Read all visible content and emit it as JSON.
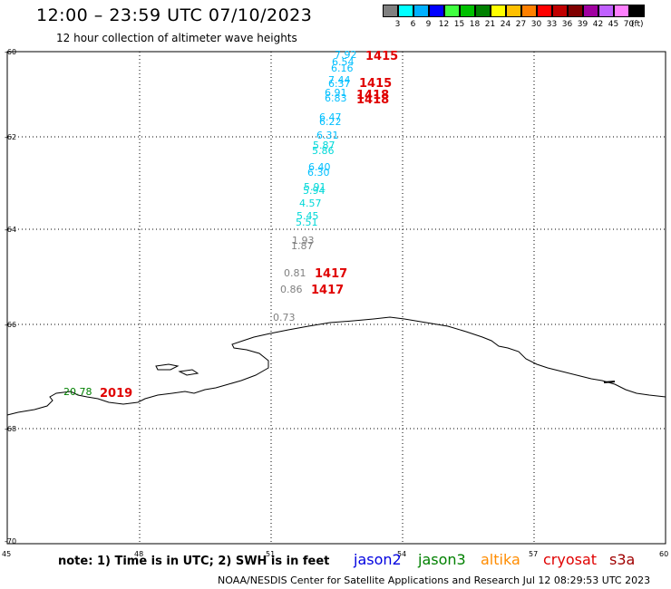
{
  "header": {
    "title": "12:00 – 23:59 UTC 07/10/2023",
    "subtitle": "12 hour collection of altimeter wave heights"
  },
  "legend": {
    "colors": [
      "#808080",
      "#00ffff",
      "#00b0ff",
      "#0000ff",
      "#40ff40",
      "#00c000",
      "#008000",
      "#ffff00",
      "#ffc000",
      "#ff8000",
      "#ff0000",
      "#c00000",
      "#800000",
      "#a000a0",
      "#c060ff",
      "#ff80ff",
      "#000000"
    ],
    "labels": [
      "3",
      "6",
      "9",
      "12",
      "15",
      "18",
      "21",
      "24",
      "27",
      "30",
      "33",
      "36",
      "39",
      "42",
      "45",
      "70"
    ],
    "unit": "(ft)"
  },
  "axes": {
    "x_ticks": [
      "45",
      "48",
      "51",
      "54",
      "57",
      "60"
    ],
    "y_ticks": [
      "-60",
      "-62",
      "-64",
      "-66",
      "-68",
      "-70"
    ]
  },
  "observations": [
    {
      "label": "7.92",
      "value": 7.92,
      "color": "#00bfff"
    },
    {
      "label": "6.54",
      "value": 6.54,
      "color": "#00bfff"
    },
    {
      "label": "6.16",
      "value": 6.16,
      "color": "#00bfff"
    },
    {
      "label": "7.44",
      "value": 7.44,
      "color": "#00bfff"
    },
    {
      "label": "6.37",
      "value": 6.37,
      "color": "#00bfff"
    },
    {
      "label": "6.91",
      "value": 6.91,
      "color": "#00bfff"
    },
    {
      "label": "6.83",
      "value": 6.83,
      "color": "#00bfff"
    },
    {
      "label": "6.47",
      "value": 6.47,
      "color": "#00bfff"
    },
    {
      "label": "6.22",
      "value": 6.22,
      "color": "#00bfff"
    },
    {
      "label": "6.31",
      "value": 6.31,
      "color": "#00bfff"
    },
    {
      "label": "5.87",
      "value": 5.87,
      "color": "#00d8d8"
    },
    {
      "label": "5.86",
      "value": 5.86,
      "color": "#00d8d8"
    },
    {
      "label": "6.40",
      "value": 6.4,
      "color": "#00bfff"
    },
    {
      "label": "6.30",
      "value": 6.3,
      "color": "#00bfff"
    },
    {
      "label": "5.91",
      "value": 5.91,
      "color": "#00d8d8"
    },
    {
      "label": "5.94",
      "value": 5.94,
      "color": "#00d8d8"
    },
    {
      "label": "4.57",
      "value": 4.57,
      "color": "#00d8d8"
    },
    {
      "label": "5.45",
      "value": 5.45,
      "color": "#00d8d8"
    },
    {
      "label": "5.51",
      "value": 5.51,
      "color": "#00d8d8"
    },
    {
      "label": "1.93",
      "value": 1.93,
      "color": "#808080"
    },
    {
      "label": "1.87",
      "value": 1.87,
      "color": "#808080"
    },
    {
      "label": "0.81",
      "value": 0.81,
      "color": "#808080"
    },
    {
      "label": "0.86",
      "value": 0.86,
      "color": "#808080"
    },
    {
      "label": "0.73",
      "value": 0.73,
      "color": "#808080"
    },
    {
      "label": "20.78",
      "value": 20.78,
      "color": "#008000"
    }
  ],
  "pass_times": [
    {
      "label": "1415",
      "color": "#e00000"
    },
    {
      "label": "1415",
      "color": "#e00000"
    },
    {
      "label": "1418",
      "color": "#e00000"
    },
    {
      "label": "1418",
      "color": "#e00000"
    },
    {
      "label": "1417",
      "color": "#e00000"
    },
    {
      "label": "1417",
      "color": "#e00000"
    },
    {
      "label": "2019",
      "color": "#800000"
    }
  ],
  "note": "note: 1) Time is in UTC; 2) SWH is in feet",
  "satellites": [
    {
      "name": "jason2",
      "color": "#0000e0"
    },
    {
      "name": "jason3",
      "color": "#008000"
    },
    {
      "name": "altika",
      "color": "#ff8c00"
    },
    {
      "name": "cryosat",
      "color": "#e00000"
    },
    {
      "name": "s3a",
      "color": "#a00000"
    }
  ],
  "footer": "NOAA/NESDIS Center for Satellite Applications and Research    Jul 12 08:29:53 UTC 2023"
}
